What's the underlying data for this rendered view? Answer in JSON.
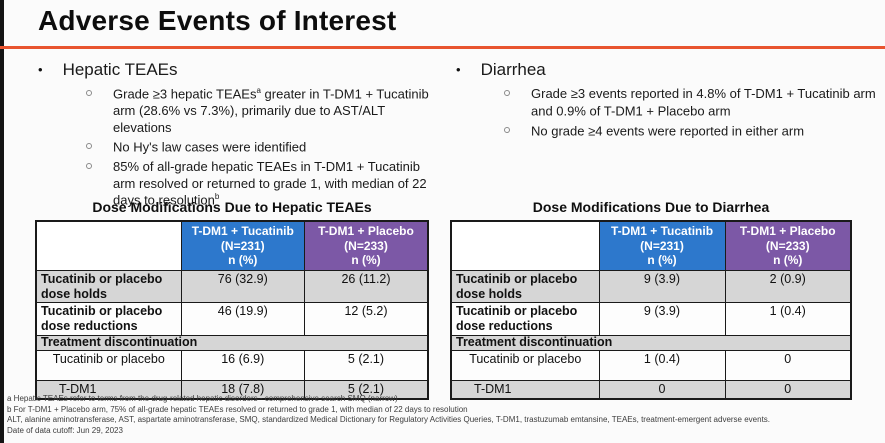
{
  "page": {
    "title": "Adverse Events of Interest",
    "accent_color": "#e8542f"
  },
  "sections": {
    "hepatic": {
      "heading": "Hepatic TEAEs",
      "bullets": [
        {
          "pre": "Grade ≥3 hepatic TEAEs",
          "sup": "a",
          "post": " greater in T-DM1 + Tucatinib arm (28.6% vs 7.3%), primarily due to AST/ALT elevations"
        },
        {
          "pre": "No Hy's law cases were identified",
          "sup": "",
          "post": ""
        },
        {
          "pre": "85% of all-grade hepatic TEAEs in T-DM1 + Tucatinib arm resolved or returned to grade 1, with median of 22 days to resolution",
          "sup": "b",
          "post": ""
        }
      ]
    },
    "diarrhea": {
      "heading": "Diarrhea",
      "bullets": [
        {
          "pre": "Grade ≥3 events reported in 4.8% of T-DM1 + Tucatinib arm and 0.9% of T-DM1 + Placebo arm",
          "sup": "",
          "post": ""
        },
        {
          "pre": "No grade ≥4 events were reported in either arm",
          "sup": "",
          "post": ""
        }
      ]
    }
  },
  "tables": {
    "hepatic": {
      "title": "Dose Modifications Due to Hepatic TEAEs",
      "columns": [
        {
          "name": "T-DM1 + Tucatinib",
          "n": "(N=231)",
          "unit": "n (%)",
          "color": "#2d78cc"
        },
        {
          "name": "T-DM1 + Placebo",
          "n": "(N=233)",
          "unit": "n (%)",
          "color": "#7c58a6"
        }
      ],
      "rows": [
        {
          "label": "Tucatinib or placebo dose holds",
          "tucatinib": "76 (32.9)",
          "placebo": "26 (11.2)"
        },
        {
          "label": "Tucatinib or placebo dose reductions",
          "tucatinib": "46 (19.9)",
          "placebo": "12 (5.2)"
        },
        {
          "label": "Treatment discontinuation"
        },
        {
          "label": "Tucatinib or placebo",
          "tucatinib": "16 (6.9)",
          "placebo": "5 (2.1)"
        },
        {
          "label": "T-DM1",
          "tucatinib": "18 (7.8)",
          "placebo": "5 (2.1)"
        }
      ]
    },
    "diarrhea": {
      "title": "Dose Modifications Due to Diarrhea",
      "columns": [
        {
          "name": "T-DM1 + Tucatinib",
          "n": "(N=231)",
          "unit": "n (%)",
          "color": "#2d78cc"
        },
        {
          "name": "T-DM1 + Placebo",
          "n": "(N=233)",
          "unit": "n (%)",
          "color": "#7c58a6"
        }
      ],
      "rows": [
        {
          "label": "Tucatinib or placebo dose holds",
          "tucatinib": "9 (3.9)",
          "placebo": "2 (0.9)"
        },
        {
          "label": "Tucatinib or placebo dose reductions",
          "tucatinib": "9 (3.9)",
          "placebo": "1 (0.4)"
        },
        {
          "label": "Treatment discontinuation"
        },
        {
          "label": "Tucatinib or placebo",
          "tucatinib": "1 (0.4)",
          "placebo": "0"
        },
        {
          "label": "T-DM1",
          "tucatinib": "0",
          "placebo": "0"
        }
      ]
    }
  },
  "footnotes": [
    "a Hepatic TEAEs refer to terms from the drug-related hepatic disorders - comprehensive search SMQ (narrow)",
    "b For T-DM1 + Placebo arm, 75% of all-grade hepatic TEAEs resolved or returned to grade 1, with median of 22 days to resolution",
    "ALT, alanine aminotransferase, AST, aspartate aminotransferase, SMQ, standardized Medical Dictionary for Regulatory Activities Queries, T-DM1, trastuzumab emtansine, TEAEs, treatment-emergent adverse events.",
    "Date of data cutoff: Jun 29, 2023"
  ]
}
